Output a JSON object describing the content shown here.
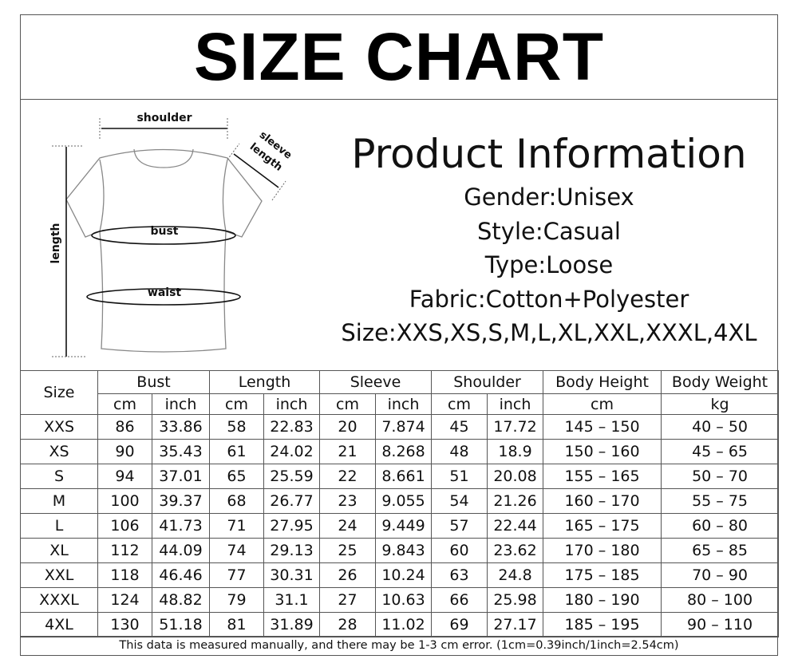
{
  "title": "SIZE CHART",
  "diagram": {
    "labels": {
      "shoulder": "shoulder",
      "sleeve1": "sleeve",
      "sleeve2": "length",
      "length": "length",
      "bust": "bust",
      "waist": "waist"
    }
  },
  "info": {
    "heading": "Product Information",
    "lines": [
      "Gender:Unisex",
      "Style:Casual",
      "Type:Loose",
      "Fabric:Cotton+Polyester",
      "Size:XXS,XS,S,M,L,XL,XXL,XXXL,4XL"
    ]
  },
  "table": {
    "size_header": "Size",
    "groups": [
      "Bust",
      "Length",
      "Sleeve",
      "Shoulder",
      "Body Height",
      "Body Weight"
    ],
    "units": [
      "cm",
      "inch",
      "cm",
      "inch",
      "cm",
      "inch",
      "cm",
      "inch",
      "cm",
      "kg"
    ],
    "rows": [
      [
        "XXS",
        "86",
        "33.86",
        "58",
        "22.83",
        "20",
        "7.874",
        "45",
        "17.72",
        "145 – 150",
        "40 – 50"
      ],
      [
        "XS",
        "90",
        "35.43",
        "61",
        "24.02",
        "21",
        "8.268",
        "48",
        "18.9",
        "150 – 160",
        "45 – 65"
      ],
      [
        "S",
        "94",
        "37.01",
        "65",
        "25.59",
        "22",
        "8.661",
        "51",
        "20.08",
        "155 – 165",
        "50 – 70"
      ],
      [
        "M",
        "100",
        "39.37",
        "68",
        "26.77",
        "23",
        "9.055",
        "54",
        "21.26",
        "160 – 170",
        "55 – 75"
      ],
      [
        "L",
        "106",
        "41.73",
        "71",
        "27.95",
        "24",
        "9.449",
        "57",
        "22.44",
        "165 – 175",
        "60 – 80"
      ],
      [
        "XL",
        "112",
        "44.09",
        "74",
        "29.13",
        "25",
        "9.843",
        "60",
        "23.62",
        "170 – 180",
        "65 – 85"
      ],
      [
        "XXL",
        "118",
        "46.46",
        "77",
        "30.31",
        "26",
        "10.24",
        "63",
        "24.8",
        "175 – 185",
        "70 – 90"
      ],
      [
        "XXXL",
        "124",
        "48.82",
        "79",
        "31.1",
        "27",
        "10.63",
        "66",
        "25.98",
        "180 – 190",
        "80 – 100"
      ],
      [
        "4XL",
        "130",
        "51.18",
        "81",
        "31.89",
        "28",
        "11.02",
        "69",
        "27.17",
        "185 – 195",
        "90 – 110"
      ]
    ]
  },
  "footer": "This data is measured manually, and there may be 1-3 cm error. (1cm=0.39inch/1inch=2.54cm)"
}
